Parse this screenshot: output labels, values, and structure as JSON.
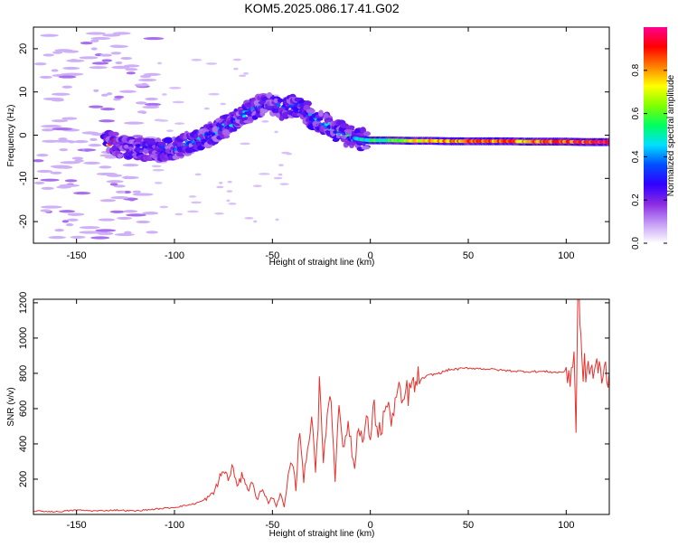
{
  "title": "KOM5.2025.086.17.41.G02",
  "chart_data": [
    {
      "type": "heatmap",
      "xlabel": "Height of straight line (km)",
      "ylabel": "Frequency (Hz)",
      "xlim": [
        -172,
        122
      ],
      "ylim": [
        -25,
        25
      ],
      "xticks": [
        -150,
        -100,
        -50,
        0,
        50,
        100
      ],
      "yticks": [
        -20,
        -10,
        0,
        10,
        20
      ],
      "colorbar": {
        "label": "Normalized spectral amplitude",
        "range": [
          0,
          1
        ],
        "ticks": [
          0.0,
          0.2,
          0.4,
          0.6,
          0.8
        ],
        "colors": [
          "#ffffff",
          "#c49cf5",
          "#8a2be2",
          "#3000ff",
          "#0050ff",
          "#00e0ff",
          "#00ff60",
          "#80ff00",
          "#ffff00",
          "#ff8000",
          "#ff0000",
          "#ff0090"
        ]
      },
      "ridge": {
        "x": [
          -130,
          -120,
          -110,
          -100,
          -90,
          -80,
          -70,
          -60,
          -52,
          -45,
          -40,
          -35,
          -30,
          -25,
          -20,
          -15,
          -10,
          -5,
          0,
          10,
          20,
          30,
          40,
          50,
          60,
          70,
          80,
          90,
          100,
          110,
          122
        ],
        "y": [
          -2.5,
          -3,
          -3.5,
          -3,
          -1.5,
          0.5,
          3,
          6,
          7.5,
          6,
          7,
          6,
          4,
          3,
          2,
          0.5,
          -0.5,
          -1,
          -1.2,
          -1.2,
          -1.3,
          -1.3,
          -1.4,
          -1.4,
          -1.4,
          -1.4,
          -1.5,
          -1.5,
          -1.5,
          -1.6,
          -1.6
        ],
        "amplitude": [
          0.2,
          0.25,
          0.25,
          0.3,
          0.35,
          0.35,
          0.4,
          0.35,
          0.3,
          0.3,
          0.3,
          0.3,
          0.35,
          0.35,
          0.4,
          0.45,
          0.45,
          0.5,
          0.55,
          0.6,
          0.75,
          0.85,
          0.85,
          0.9,
          0.9,
          0.9,
          0.85,
          0.9,
          0.95,
          0.95,
          0.95
        ]
      }
    },
    {
      "type": "line",
      "xlabel": "Height of straight line (km)",
      "ylabel": "SNR (v/v)",
      "xlim": [
        -172,
        122
      ],
      "ylim": [
        0,
        1220
      ],
      "xticks": [
        -150,
        -100,
        -50,
        0,
        50,
        100
      ],
      "yticks": [
        200,
        400,
        600,
        800,
        1000,
        1200
      ],
      "color": "#e8302c",
      "x": [
        -172,
        -160,
        -150,
        -140,
        -130,
        -120,
        -110,
        -100,
        -95,
        -90,
        -85,
        -80,
        -78,
        -75,
        -72,
        -70,
        -68,
        -65,
        -62,
        -60,
        -58,
        -55,
        -52,
        -50,
        -48,
        -46,
        -44,
        -42,
        -40,
        -38,
        -36,
        -34,
        -32,
        -30,
        -28,
        -26,
        -24,
        -22,
        -20,
        -18,
        -16,
        -14,
        -12,
        -10,
        -8,
        -6,
        -4,
        -2,
        0,
        2,
        4,
        6,
        8,
        10,
        12,
        14,
        16,
        18,
        20,
        22,
        25,
        30,
        35,
        40,
        50,
        60,
        70,
        80,
        90,
        95,
        100,
        102,
        104,
        105,
        106,
        107,
        108,
        110,
        115,
        122
      ],
      "y": [
        20,
        15,
        25,
        20,
        25,
        20,
        30,
        40,
        50,
        60,
        80,
        120,
        180,
        250,
        200,
        280,
        150,
        230,
        130,
        200,
        80,
        150,
        60,
        100,
        50,
        120,
        40,
        200,
        300,
        150,
        500,
        200,
        350,
        600,
        250,
        700,
        300,
        600,
        650,
        200,
        700,
        350,
        500,
        420,
        250,
        550,
        400,
        520,
        450,
        600,
        470,
        500,
        630,
        550,
        580,
        700,
        620,
        680,
        700,
        720,
        760,
        790,
        800,
        820,
        830,
        825,
        815,
        810,
        810,
        805,
        810,
        800,
        900,
        500,
        1200,
        1220,
        800,
        830,
        810,
        810
      ]
    }
  ]
}
